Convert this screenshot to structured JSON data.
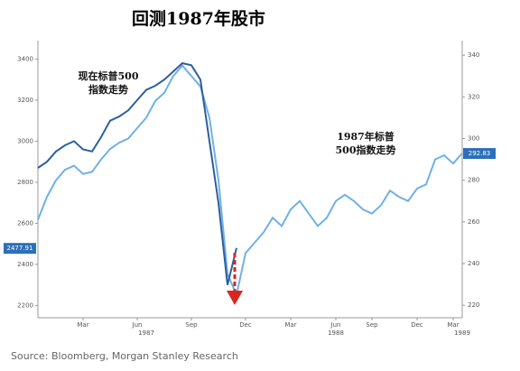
{
  "chart_data": {
    "type": "line",
    "title": "回测1987年股市",
    "source": "Source: Bloomberg, Morgan Stanley Research",
    "categories": [
      null,
      null,
      null,
      null,
      null,
      "Mar",
      null,
      null,
      null,
      null,
      null,
      "Jun",
      null,
      null,
      null,
      null,
      null,
      "Sep",
      null,
      null,
      null,
      null,
      null,
      "Dec",
      null,
      null,
      null,
      null,
      "Mar",
      null,
      null,
      null,
      null,
      "Jun",
      null,
      null,
      null,
      "Sep",
      null,
      null,
      null,
      null,
      "Dec",
      null,
      null,
      null,
      "Mar",
      null
    ],
    "years": [
      "1987",
      "1988",
      "1989"
    ],
    "ylim": [
      2140,
      3490
    ],
    "yticks": [
      2200,
      2400,
      2600,
      2800,
      3000,
      3200,
      3400
    ],
    "y2lim": [
      214,
      347
    ],
    "y2ticks": [
      220,
      240,
      260,
      280,
      300,
      320,
      340
    ],
    "series": [
      {
        "name": "现在标普500指数走势",
        "color": "#2d5f9c",
        "axis": "y",
        "values": [
          2870,
          2900,
          2950,
          2980,
          3000,
          2960,
          2950,
          3020,
          3100,
          3120,
          3150,
          3200,
          3250,
          3270,
          3300,
          3340,
          3380,
          3370,
          3300,
          3000,
          2700,
          2300,
          2480,
          null,
          null,
          null,
          null,
          null,
          null,
          null,
          null,
          null,
          null,
          null,
          null,
          null,
          null,
          null,
          null,
          null,
          null,
          null,
          null,
          null,
          null,
          null,
          null,
          null
        ],
        "tag": {
          "value": 2477.91,
          "label": "2477.91"
        }
      },
      {
        "name": "1987年标普500指数走势",
        "color": "#6fb0e6",
        "axis": "y2",
        "values": [
          261,
          272,
          280,
          285,
          287,
          283,
          284,
          290,
          295,
          298,
          300,
          305,
          310,
          318,
          322,
          330,
          335,
          330,
          325,
          310,
          280,
          235,
          225,
          245,
          250,
          255,
          262,
          258,
          266,
          270,
          264,
          258,
          262,
          270,
          273,
          270,
          266,
          264,
          268,
          275,
          272,
          270,
          276,
          278,
          290,
          292,
          288,
          293
        ],
        "tag": {
          "value": 292.83,
          "label": "292.83"
        }
      }
    ],
    "annotations": [
      {
        "lines": [
          "现在标普500",
          "指数走势"
        ]
      },
      {
        "lines": [
          "1987年标普",
          "500指数走势"
        ]
      }
    ]
  }
}
